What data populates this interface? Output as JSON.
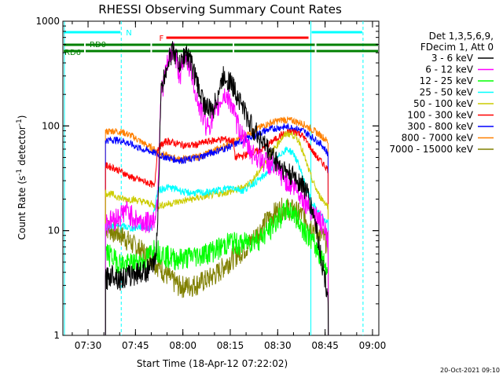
{
  "chart_data": {
    "type": "line",
    "title": "RHESSI Observing Summary Count Rates",
    "xlabel": "Start Time (18-Apr-12 07:22:02)",
    "ylabel": "Count Rate (s⁻¹ detector⁻¹)",
    "ylabel_parts": {
      "main": "Count Rate (s",
      "sup1": "-1",
      "mid": " detector",
      "sup2": "-1",
      "end": ")"
    },
    "y_scale": "log",
    "ylim": [
      1,
      1000
    ],
    "xlim": [
      "07:22:02",
      "09:02:00"
    ],
    "x_ticks": [
      "07:30",
      "07:45",
      "08:00",
      "08:15",
      "08:30",
      "08:45",
      "09:00"
    ],
    "y_ticks": [
      "1",
      "10",
      "100",
      "1000"
    ],
    "legend_header": [
      "Det 1,3,5,6,9,",
      "FDecim 1, Att 0"
    ],
    "legend_position": "right",
    "timestamp": "20-Oct-2021 09:10",
    "series": [
      {
        "name": "3 - 6 keV",
        "color": "#000000",
        "points": [
          [
            "07:35:30",
            3.5
          ],
          [
            "07:38",
            4
          ],
          [
            "07:40",
            3.5
          ],
          [
            "07:45",
            4
          ],
          [
            "07:48",
            4.2
          ],
          [
            "07:50",
            4.5
          ],
          [
            "07:51",
            4.8
          ],
          [
            "07:52",
            10
          ],
          [
            "07:53",
            200
          ],
          [
            "07:55",
            400
          ],
          [
            "07:57",
            550
          ],
          [
            "07:59",
            380
          ],
          [
            "08:01",
            520
          ],
          [
            "08:03",
            380
          ],
          [
            "08:05",
            230
          ],
          [
            "08:07",
            160
          ],
          [
            "08:09",
            140
          ],
          [
            "08:10",
            160
          ],
          [
            "08:13",
            310
          ],
          [
            "08:15",
            270
          ],
          [
            "08:18",
            180
          ],
          [
            "08:21",
            110
          ],
          [
            "08:24",
            80
          ],
          [
            "08:27",
            60
          ],
          [
            "08:30",
            45
          ],
          [
            "08:33",
            36
          ],
          [
            "08:36",
            32
          ],
          [
            "08:39",
            25
          ],
          [
            "08:42",
            12
          ],
          [
            "08:44",
            5
          ],
          [
            "08:46",
            2.4
          ]
        ]
      },
      {
        "name": "6 - 12 keV",
        "color": "#ff00ff",
        "points": [
          [
            "07:35:30",
            12
          ],
          [
            "07:38",
            13
          ],
          [
            "07:40",
            14
          ],
          [
            "07:42",
            16
          ],
          [
            "07:45",
            13
          ],
          [
            "07:48",
            12
          ],
          [
            "07:51",
            13
          ],
          [
            "07:52",
            20
          ],
          [
            "07:53",
            200
          ],
          [
            "07:55",
            380
          ],
          [
            "07:57",
            550
          ],
          [
            "07:59",
            310
          ],
          [
            "08:01",
            480
          ],
          [
            "08:03",
            300
          ],
          [
            "08:05",
            160
          ],
          [
            "08:07",
            110
          ],
          [
            "08:08",
            100
          ],
          [
            "08:10",
            130
          ],
          [
            "08:13",
            200
          ],
          [
            "08:15",
            180
          ],
          [
            "08:17",
            110
          ],
          [
            "08:19",
            80
          ],
          [
            "08:21",
            60
          ],
          [
            "08:24",
            50
          ],
          [
            "08:27",
            45
          ],
          [
            "08:30",
            38
          ],
          [
            "08:33",
            30
          ],
          [
            "08:36",
            25
          ],
          [
            "08:39",
            19
          ],
          [
            "08:42",
            14
          ],
          [
            "08:44",
            12
          ],
          [
            "08:46",
            8
          ]
        ]
      },
      {
        "name": "12 - 25 keV",
        "color": "#00ff00",
        "points": [
          [
            "07:35:30",
            6.5
          ],
          [
            "07:38",
            5.5
          ],
          [
            "07:40",
            5
          ],
          [
            "07:42",
            4.8
          ],
          [
            "07:45",
            5
          ],
          [
            "07:48",
            5.2
          ],
          [
            "07:51",
            7
          ],
          [
            "07:54",
            6
          ],
          [
            "07:57",
            5.5
          ],
          [
            "08:00",
            5.5
          ],
          [
            "08:03",
            5.8
          ],
          [
            "08:06",
            6
          ],
          [
            "08:09",
            6.5
          ],
          [
            "08:12",
            7
          ],
          [
            "08:15",
            8
          ],
          [
            "08:18",
            7.5
          ],
          [
            "08:21",
            8
          ],
          [
            "08:24",
            8.5
          ],
          [
            "08:27",
            10
          ],
          [
            "08:30",
            13
          ],
          [
            "08:33",
            16
          ],
          [
            "08:35",
            15
          ],
          [
            "08:37",
            12
          ],
          [
            "08:40",
            9
          ],
          [
            "08:42",
            7
          ],
          [
            "08:44",
            5.5
          ],
          [
            "08:46",
            4
          ]
        ]
      },
      {
        "name": "25 - 50 keV",
        "color": "#00ffff",
        "points": [
          [
            "07:35:30",
            11
          ],
          [
            "07:38",
            11
          ],
          [
            "07:41",
            11
          ],
          [
            "07:44",
            10.5
          ],
          [
            "07:47",
            11
          ],
          [
            "07:50",
            10.5
          ],
          [
            "07:52",
            24
          ],
          [
            "07:55",
            26
          ],
          [
            "07:58",
            25
          ],
          [
            "08:01",
            23
          ],
          [
            "08:04",
            23
          ],
          [
            "08:07",
            23
          ],
          [
            "08:10",
            24
          ],
          [
            "08:13",
            25
          ],
          [
            "08:16",
            26
          ],
          [
            "08:19",
            24
          ],
          [
            "08:22",
            28
          ],
          [
            "08:25",
            32
          ],
          [
            "08:28",
            40
          ],
          [
            "08:31",
            55
          ],
          [
            "08:33",
            60
          ],
          [
            "08:35",
            55
          ],
          [
            "08:37",
            40
          ],
          [
            "08:39",
            26
          ],
          [
            "08:41",
            18
          ],
          [
            "08:43",
            15
          ],
          [
            "08:45",
            12
          ],
          [
            "08:46",
            13
          ]
        ]
      },
      {
        "name": "50 - 100 keV",
        "color": "#cccc00",
        "points": [
          [
            "07:35:30",
            23
          ],
          [
            "07:38",
            22
          ],
          [
            "07:41",
            20
          ],
          [
            "07:44",
            20
          ],
          [
            "07:47",
            19
          ],
          [
            "07:50",
            18
          ],
          [
            "07:51",
            17
          ],
          [
            "08:16",
            24
          ],
          [
            "08:19",
            26
          ],
          [
            "08:22",
            30
          ],
          [
            "08:25",
            40
          ],
          [
            "08:28",
            55
          ],
          [
            "08:31",
            75
          ],
          [
            "08:33",
            85
          ],
          [
            "08:35",
            82
          ],
          [
            "08:37",
            70
          ],
          [
            "08:39",
            45
          ],
          [
            "08:41",
            30
          ],
          [
            "08:43",
            22
          ],
          [
            "08:46",
            17
          ]
        ]
      },
      {
        "name": "100 - 300 keV",
        "color": "#ff0000",
        "points": [
          [
            "07:35:30",
            42
          ],
          [
            "07:38",
            40
          ],
          [
            "07:41",
            36
          ],
          [
            "07:44",
            32
          ],
          [
            "07:47",
            30
          ],
          [
            "07:50",
            28
          ],
          [
            "07:51",
            26
          ],
          [
            "07:52",
            62
          ],
          [
            "07:55",
            72
          ],
          [
            "07:58",
            68
          ],
          [
            "08:01",
            65
          ],
          [
            "08:04",
            66
          ],
          [
            "08:07",
            70
          ],
          [
            "08:10",
            73
          ],
          [
            "08:13",
            75
          ],
          [
            "08:16",
            72
          ],
          [
            "08:16:30",
            50
          ],
          [
            "08:19",
            52
          ],
          [
            "08:22",
            55
          ],
          [
            "08:25",
            60
          ],
          [
            "08:28",
            70
          ],
          [
            "08:31",
            82
          ],
          [
            "08:34",
            88
          ],
          [
            "08:36",
            88
          ],
          [
            "08:38",
            80
          ],
          [
            "08:40",
            65
          ],
          [
            "08:42",
            52
          ],
          [
            "08:44",
            45
          ],
          [
            "08:46",
            38
          ]
        ]
      },
      {
        "name": "300 - 800 keV",
        "color": "#0000ff",
        "points": [
          [
            "07:35:30",
            73
          ],
          [
            "07:38",
            74
          ],
          [
            "07:41",
            72
          ],
          [
            "07:44",
            66
          ],
          [
            "07:47",
            60
          ],
          [
            "07:50",
            57
          ],
          [
            "07:53",
            52
          ],
          [
            "07:56",
            49
          ],
          [
            "07:59",
            47
          ],
          [
            "08:02",
            48
          ],
          [
            "08:05",
            50
          ],
          [
            "08:08",
            54
          ],
          [
            "08:11",
            58
          ],
          [
            "08:14",
            62
          ],
          [
            "08:17",
            68
          ],
          [
            "08:20",
            75
          ],
          [
            "08:23",
            82
          ],
          [
            "08:26",
            90
          ],
          [
            "08:29",
            95
          ],
          [
            "08:32",
            98
          ],
          [
            "08:35",
            96
          ],
          [
            "08:38",
            90
          ],
          [
            "08:41",
            78
          ],
          [
            "08:44",
            66
          ],
          [
            "08:46",
            54
          ]
        ]
      },
      {
        "name": "800 - 7000 keV",
        "color": "#ff8000",
        "points": [
          [
            "07:35:30",
            88
          ],
          [
            "07:38",
            90
          ],
          [
            "07:41",
            87
          ],
          [
            "07:44",
            80
          ],
          [
            "07:47",
            70
          ],
          [
            "07:50",
            62
          ],
          [
            "07:53",
            55
          ],
          [
            "07:56",
            50
          ],
          [
            "07:59",
            48
          ],
          [
            "08:02",
            49
          ],
          [
            "08:05",
            51
          ],
          [
            "08:08",
            55
          ],
          [
            "08:11",
            60
          ],
          [
            "08:14",
            66
          ],
          [
            "08:17",
            73
          ],
          [
            "08:20",
            82
          ],
          [
            "08:23",
            92
          ],
          [
            "08:26",
            102
          ],
          [
            "08:29",
            110
          ],
          [
            "08:32",
            115
          ],
          [
            "08:35",
            112
          ],
          [
            "08:38",
            105
          ],
          [
            "08:41",
            92
          ],
          [
            "08:44",
            80
          ],
          [
            "08:46",
            70
          ]
        ]
      },
      {
        "name": "7000 - 15000 keV",
        "color": "#808000",
        "points": [
          [
            "07:35:30",
            11
          ],
          [
            "07:38",
            10
          ],
          [
            "07:41",
            9
          ],
          [
            "07:44",
            7.5
          ],
          [
            "07:47",
            6.5
          ],
          [
            "07:50",
            5.5
          ],
          [
            "07:53",
            4.5
          ],
          [
            "07:56",
            3.5
          ],
          [
            "07:59",
            3
          ],
          [
            "08:02",
            3
          ],
          [
            "08:05",
            3.2
          ],
          [
            "08:08",
            3.5
          ],
          [
            "08:11",
            4
          ],
          [
            "08:14",
            5
          ],
          [
            "08:17",
            6
          ],
          [
            "08:20",
            7
          ],
          [
            "08:23",
            9
          ],
          [
            "08:26",
            12
          ],
          [
            "08:29",
            15
          ],
          [
            "08:32",
            17
          ],
          [
            "08:35",
            16
          ],
          [
            "08:38",
            14
          ],
          [
            "08:41",
            11
          ],
          [
            "08:44",
            9
          ],
          [
            "08:46",
            7.5
          ]
        ]
      }
    ],
    "state_bars": [
      {
        "label": "N",
        "color": "#00ffff",
        "level": "top",
        "segments": [
          [
            "07:22:02",
            "07:40:30"
          ],
          [
            "08:40:30",
            "08:57:00"
          ]
        ]
      },
      {
        "label": "F",
        "color": "#ff0000",
        "level": "high",
        "segments": [
          [
            "07:54:30",
            "08:40:00"
          ]
        ]
      },
      {
        "label": "RD0",
        "color": "#008000",
        "level": "mid",
        "segments": [
          [
            "07:22:02",
            "07:29:00"
          ],
          [
            "07:29:00",
            "07:50:00"
          ],
          [
            "07:50:00",
            "08:16:00"
          ],
          [
            "08:16:00",
            "08:42:00"
          ],
          [
            "08:42:00",
            "09:02:00"
          ]
        ]
      },
      {
        "label": "RD6",
        "color": "#008000",
        "level": "low",
        "segments": [
          [
            "07:22:02",
            "07:29:00"
          ],
          [
            "07:29:00",
            "07:50:00"
          ],
          [
            "07:50:00",
            "08:16:00"
          ],
          [
            "08:16:00",
            "08:42:00"
          ],
          [
            "08:42:00",
            "09:02:00"
          ]
        ]
      }
    ]
  }
}
